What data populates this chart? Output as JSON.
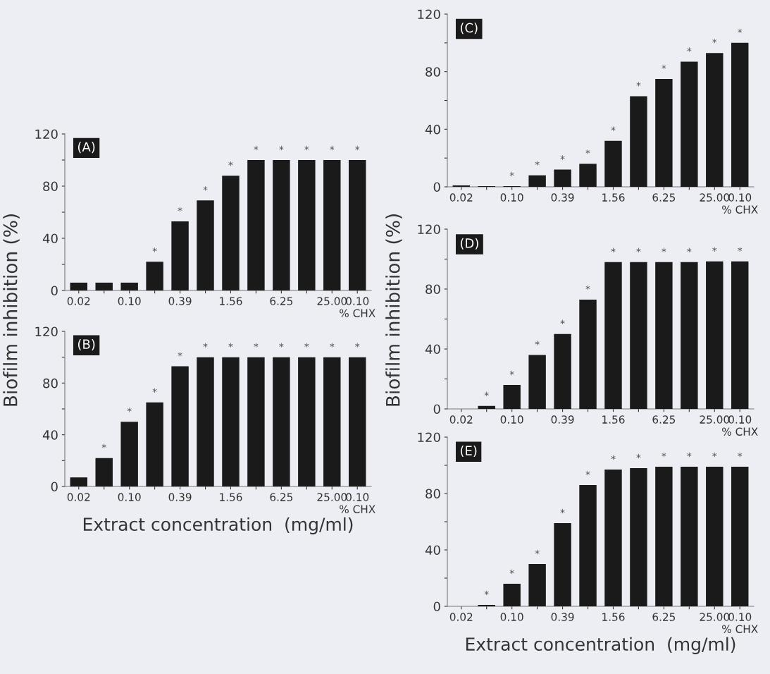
{
  "chart_data": [
    {
      "type": "bar",
      "title": "(A)",
      "ylabel": "Biofilm inhibition (%)",
      "categories": [
        "0.02",
        null,
        "0.10",
        null,
        "0.39",
        null,
        "1.56",
        null,
        "6.25",
        null,
        "25.00",
        "0.10\n% CHX"
      ],
      "color": "#1a1a1a",
      "values": [
        6,
        6,
        6,
        22,
        53,
        69,
        88,
        100,
        100,
        100,
        100,
        100
      ],
      "value_labels": [
        null,
        null,
        null,
        "*",
        "*",
        "*",
        "*",
        "*",
        "*",
        "*",
        "*",
        "*"
      ],
      "ylim": [
        0,
        120
      ],
      "yticks": [
        0,
        {
          "value": 20,
          "label": null
        },
        40,
        {
          "value": 60,
          "label": null
        },
        80,
        {
          "value": 100,
          "label": null
        },
        120
      ]
    },
    {
      "type": "bar",
      "title": "(B)",
      "xlabel": "Extract concentration  (mg/ml)",
      "categories": [
        "0.02",
        null,
        "0.10",
        null,
        "0.39",
        null,
        "1.56",
        null,
        "6.25",
        null,
        "25.00",
        "0.10\n% CHX"
      ],
      "color": "#1a1a1a",
      "values": [
        7,
        22,
        50,
        65,
        93,
        100,
        100,
        100,
        100,
        100,
        100,
        100
      ],
      "value_labels": [
        null,
        "*",
        "*",
        "*",
        "*",
        "*",
        "*",
        "*",
        "*",
        "*",
        "*",
        "*"
      ],
      "ylim": [
        0,
        120
      ],
      "yticks": [
        0,
        {
          "value": 20,
          "label": null
        },
        40,
        {
          "value": 60,
          "label": null
        },
        80,
        {
          "value": 100,
          "label": null
        },
        120
      ]
    },
    {
      "type": "bar",
      "title": "(C)",
      "categories": [
        "0.02",
        null,
        "0.10",
        null,
        "0.39",
        null,
        "1.56",
        null,
        "6.25",
        null,
        "25.00",
        "0.10\n% CHX"
      ],
      "color": "#1a1a1a",
      "values": [
        1,
        0.5,
        0.5,
        8,
        12,
        16,
        32,
        63,
        75,
        87,
        93,
        100
      ],
      "value_labels": [
        null,
        null,
        "*",
        "*",
        "*",
        "*",
        "*",
        "*",
        "*",
        "*",
        "*",
        "*"
      ],
      "ylim": [
        0,
        120
      ],
      "yticks": [
        0,
        {
          "value": 20,
          "label": null
        },
        40,
        {
          "value": 60,
          "label": null
        },
        80,
        {
          "value": 100,
          "label": null
        },
        120
      ]
    },
    {
      "type": "bar",
      "title": "(D)",
      "ylabel": "Biofilm inhibition (%)",
      "categories": [
        "0.02",
        null,
        "0.10",
        null,
        "0.39",
        null,
        "1.56",
        null,
        "6.25",
        null,
        "25.00",
        "0.10\n% CHX"
      ],
      "color": "#1a1a1a",
      "values": [
        0,
        2,
        16,
        36,
        50,
        73,
        98,
        98,
        98,
        98,
        98.5,
        98.5
      ],
      "value_labels": [
        null,
        "*",
        "*",
        "*",
        "*",
        "*",
        "*",
        "*",
        "*",
        "*",
        "*",
        "*"
      ],
      "ylim": [
        0,
        120
      ],
      "yticks": [
        0,
        {
          "value": 20,
          "label": null
        },
        40,
        {
          "value": 60,
          "label": null
        },
        80,
        {
          "value": 100,
          "label": null
        },
        120
      ]
    },
    {
      "type": "bar",
      "title": "(E)",
      "xlabel": "Extract concentration  (mg/ml)",
      "categories": [
        "0.02",
        null,
        "0.10",
        null,
        "0.39",
        null,
        "1.56",
        null,
        "6.25",
        null,
        "25.00",
        "0.10\n% CHX"
      ],
      "color": "#1a1a1a",
      "values": [
        0,
        1,
        16,
        30,
        59,
        86,
        97,
        98,
        99,
        99,
        99,
        99
      ],
      "value_labels": [
        null,
        "*",
        "*",
        "*",
        "*",
        "*",
        "*",
        "*",
        "*",
        "*",
        "*",
        "*"
      ],
      "ylim": [
        0,
        120
      ],
      "yticks": [
        0,
        {
          "value": 20,
          "label": null
        },
        40,
        {
          "value": 60,
          "label": null
        },
        80,
        {
          "value": 100,
          "label": null
        },
        120
      ]
    }
  ]
}
